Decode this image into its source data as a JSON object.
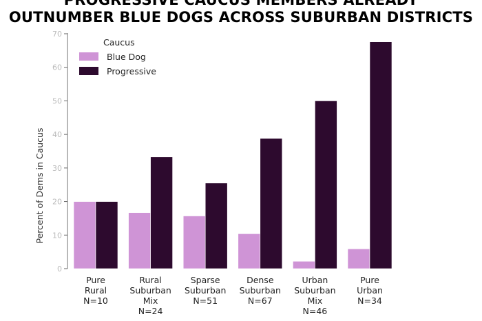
{
  "chart_data": {
    "type": "bar",
    "title": [
      "PROGRESSIVE CAUCUS MEMBERS ALREADY",
      "OUTNUMBER BLUE DOGS ACROSS SUBURBAN DISTRICTS"
    ],
    "xlabel": "",
    "ylabel": "Percent of Dems in Caucus",
    "ylim": [
      0,
      70
    ],
    "yticks": [
      0,
      10,
      20,
      30,
      40,
      50,
      60,
      70
    ],
    "categories": [
      [
        "Pure",
        "Rural",
        "N=10"
      ],
      [
        "Rural",
        "Suburban",
        "Mix",
        "N=24"
      ],
      [
        "Sparse",
        "Suburban",
        "N=51"
      ],
      [
        "Dense",
        "Suburban",
        "N=67"
      ],
      [
        "Urban",
        "Suburban",
        "Mix",
        "N=46"
      ],
      [
        "Pure",
        "Urban",
        "N=34"
      ]
    ],
    "legend": {
      "title": "Caucus",
      "placement": "top-left"
    },
    "series": [
      {
        "name": "Blue Dog",
        "color": "#cf94d6",
        "values": [
          20.0,
          16.7,
          15.7,
          10.4,
          2.2,
          5.9
        ]
      },
      {
        "name": "Progressive",
        "color": "#2d0a2e",
        "values": [
          20.0,
          33.3,
          25.5,
          38.8,
          50.0,
          67.6
        ]
      }
    ],
    "grid": false
  }
}
